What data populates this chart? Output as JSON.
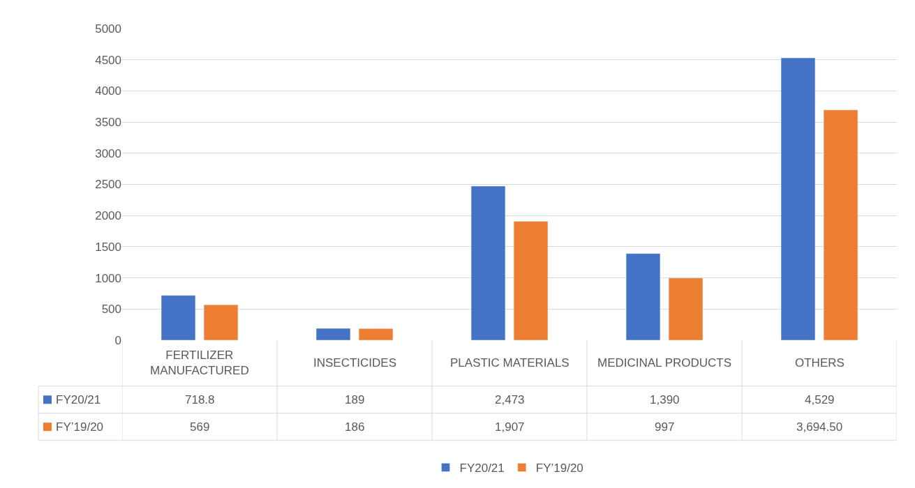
{
  "chart_data": {
    "type": "bar",
    "categories": [
      "FERTILIZER MANUFACTURED",
      "INSECTICIDES",
      "PLASTIC MATERIALS",
      "MEDICINAL PRODUCTS",
      "OTHERS"
    ],
    "series": [
      {
        "name": "FY20/21",
        "color": "#4472c4",
        "values": [
          718.8,
          189,
          2473,
          1390,
          4529
        ],
        "value_labels": [
          "718.8",
          "189",
          "2,473",
          "1,390",
          "4,529"
        ]
      },
      {
        "name": "FY’19/20",
        "color": "#ed7d31",
        "values": [
          569,
          186,
          1907,
          997,
          3694.5
        ],
        "value_labels": [
          "569",
          "186",
          "1,907",
          "997",
          "3,694.50"
        ]
      }
    ],
    "ylim": [
      0,
      5000
    ],
    "yticks": [
      0,
      500,
      1000,
      1500,
      2000,
      2500,
      3000,
      3500,
      4000,
      4500,
      5000
    ],
    "grid": "y",
    "legend": "bottom"
  }
}
